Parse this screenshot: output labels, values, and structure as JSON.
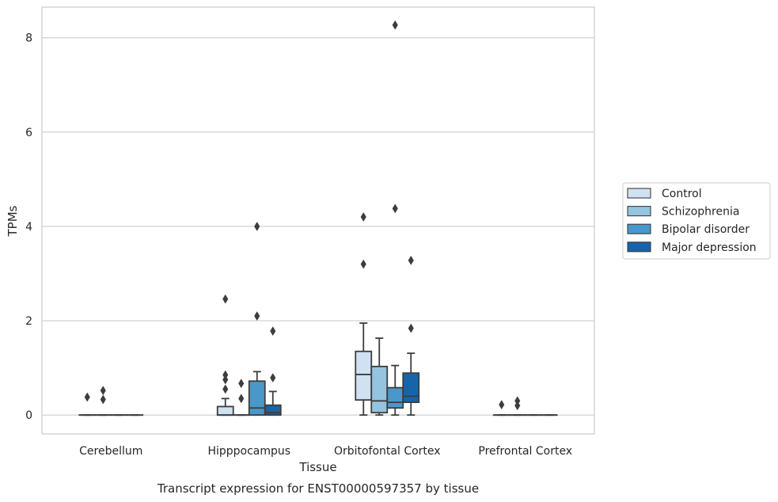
{
  "chart_data": {
    "type": "box",
    "xlabel": "Tissue",
    "ylabel": "TPMs",
    "caption": "Transcript expression for ENST00000597357 by tissue",
    "ylim": [
      -0.4,
      8.65
    ],
    "yticks": [
      0,
      2,
      4,
      6,
      8
    ],
    "grid": "horizontal",
    "legend_position": "right",
    "categories": [
      "Cerebellum",
      "Hipppocampus",
      "Orbitofontal Cortex",
      "Prefrontal Cortex"
    ],
    "series": [
      {
        "name": "Control",
        "color": "#d0e1f2",
        "boxes": [
          {
            "whislo": 0,
            "q1": 0,
            "med": 0,
            "q3": 0,
            "whishi": 0,
            "fliers": [
              0.38
            ]
          },
          {
            "whislo": 0,
            "q1": 0,
            "med": 0,
            "q3": 0.18,
            "whishi": 0.35,
            "fliers": [
              0.55,
              0.75,
              0.85,
              2.46
            ]
          },
          {
            "whislo": 0,
            "q1": 0.32,
            "med": 0.86,
            "q3": 1.35,
            "whishi": 1.95,
            "fliers": [
              3.2,
              4.2
            ]
          },
          {
            "whislo": 0,
            "q1": 0,
            "med": 0,
            "q3": 0,
            "whishi": 0,
            "fliers": [
              0.22
            ]
          }
        ]
      },
      {
        "name": "Schizophrenia",
        "color": "#94c4df",
        "boxes": [
          {
            "whislo": 0,
            "q1": 0,
            "med": 0,
            "q3": 0,
            "whishi": 0,
            "fliers": [
              0.33,
              0.52
            ]
          },
          {
            "whislo": 0,
            "q1": 0,
            "med": 0,
            "q3": 0,
            "whishi": 0,
            "fliers": [
              0.35,
              0.67
            ]
          },
          {
            "whislo": 0,
            "q1": 0.05,
            "med": 0.3,
            "q3": 1.03,
            "whishi": 1.63,
            "fliers": []
          },
          {
            "whislo": 0,
            "q1": 0,
            "med": 0,
            "q3": 0,
            "whishi": 0,
            "fliers": [
              0.2,
              0.3
            ]
          }
        ]
      },
      {
        "name": "Bipolar disorder",
        "color": "#4a98c9",
        "boxes": [
          {
            "whislo": 0,
            "q1": 0,
            "med": 0,
            "q3": 0,
            "whishi": 0,
            "fliers": []
          },
          {
            "whislo": 0,
            "q1": 0,
            "med": 0.15,
            "q3": 0.72,
            "whishi": 0.92,
            "fliers": [
              2.1,
              4.0
            ]
          },
          {
            "whislo": 0,
            "q1": 0.15,
            "med": 0.27,
            "q3": 0.58,
            "whishi": 1.05,
            "fliers": [
              4.38,
              8.27
            ]
          },
          {
            "whislo": 0,
            "q1": 0,
            "med": 0,
            "q3": 0,
            "whishi": 0,
            "fliers": []
          }
        ]
      },
      {
        "name": "Major depression",
        "color": "#1764ab",
        "boxes": [
          {
            "whislo": 0,
            "q1": 0,
            "med": 0,
            "q3": 0,
            "whishi": 0,
            "fliers": []
          },
          {
            "whislo": 0,
            "q1": 0,
            "med": 0.05,
            "q3": 0.21,
            "whishi": 0.5,
            "fliers": [
              0.79,
              1.78
            ]
          },
          {
            "whislo": 0,
            "q1": 0.27,
            "med": 0.4,
            "q3": 0.89,
            "whishi": 1.31,
            "fliers": [
              1.84,
              3.28
            ]
          },
          {
            "whislo": 0,
            "q1": 0,
            "med": 0,
            "q3": 0,
            "whishi": 0,
            "fliers": []
          }
        ]
      }
    ]
  }
}
